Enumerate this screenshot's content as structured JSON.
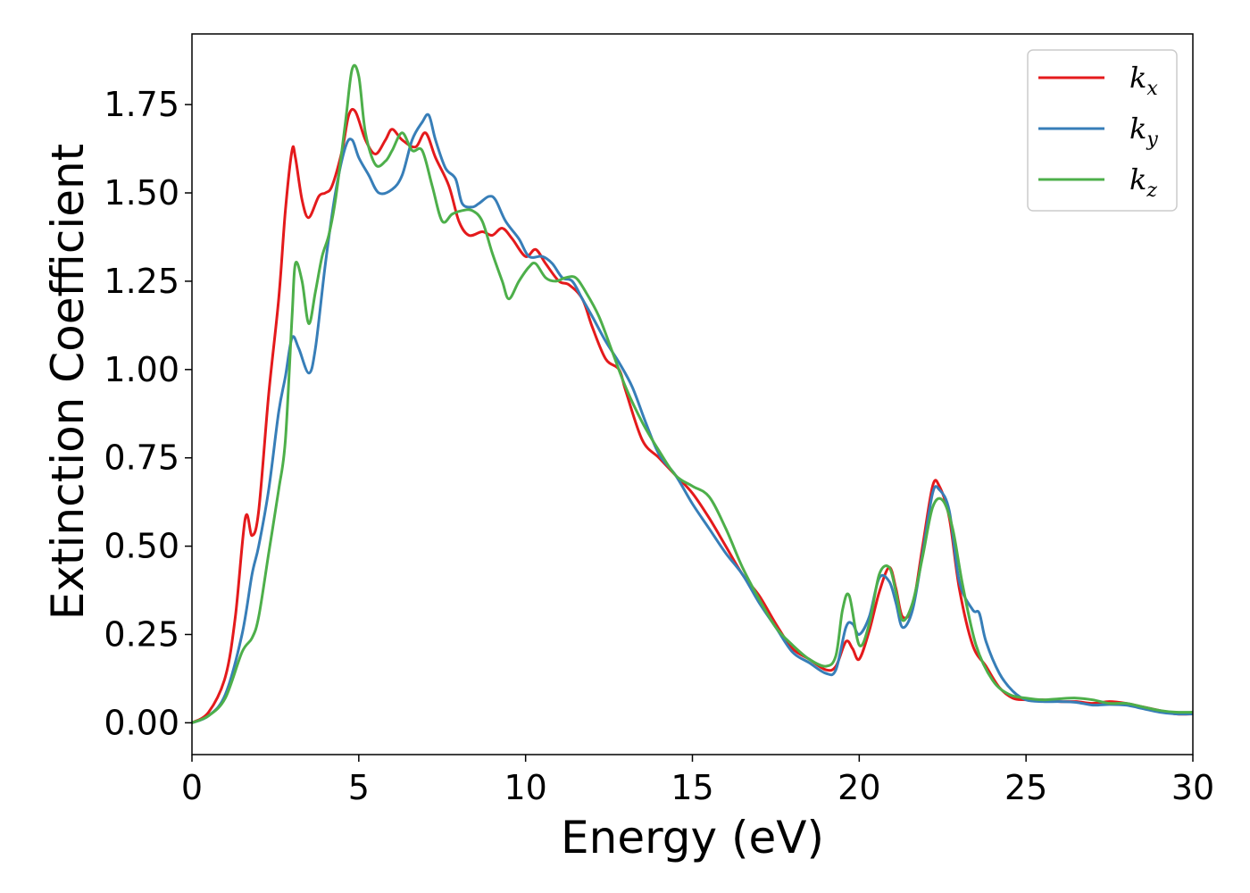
{
  "chart_data": {
    "type": "line",
    "xlabel": "Energy (eV)",
    "ylabel": "Extinction Coefficient",
    "xlim": [
      0,
      30
    ],
    "ylim": [
      -0.09,
      1.95
    ],
    "xticks": [
      0,
      5,
      10,
      15,
      20,
      25,
      30
    ],
    "xtick_labels": [
      "0",
      "5",
      "10",
      "15",
      "20",
      "25",
      "30"
    ],
    "yticks": [
      0,
      0.25,
      0.5,
      0.75,
      1.0,
      1.25,
      1.5,
      1.75
    ],
    "ytick_labels": [
      "0.00",
      "0.25",
      "0.50",
      "0.75",
      "1.00",
      "1.25",
      "1.50",
      "1.75"
    ],
    "grid": false,
    "legend_position": "top-right",
    "series": [
      {
        "name": "k",
        "subscript": "x",
        "color": "#e41a1c",
        "x": [
          0,
          0.5,
          1.0,
          1.3,
          1.6,
          1.8,
          2.0,
          2.3,
          2.6,
          2.8,
          3.0,
          3.1,
          3.3,
          3.5,
          3.8,
          4.0,
          4.2,
          4.5,
          4.7,
          4.9,
          5.2,
          5.5,
          5.8,
          6.0,
          6.3,
          6.7,
          7.0,
          7.3,
          7.7,
          8.0,
          8.3,
          8.7,
          9.0,
          9.3,
          9.6,
          10.0,
          10.3,
          10.6,
          11.0,
          11.3,
          11.7,
          12.0,
          12.4,
          12.8,
          13.0,
          13.5,
          14.0,
          14.5,
          15.0,
          15.5,
          16.0,
          16.5,
          17.0,
          17.5,
          18.0,
          18.5,
          19.0,
          19.3,
          19.6,
          19.8,
          20.0,
          20.3,
          20.6,
          20.9,
          21.1,
          21.3,
          21.6,
          21.9,
          22.2,
          22.4,
          22.7,
          23.0,
          23.4,
          23.8,
          24.2,
          24.6,
          25.0,
          25.5,
          26.0,
          26.5,
          27.0,
          27.5,
          28.0,
          28.5,
          29.0,
          29.5,
          30.0
        ],
        "y": [
          0.0,
          0.03,
          0.13,
          0.3,
          0.58,
          0.53,
          0.6,
          0.93,
          1.2,
          1.45,
          1.62,
          1.6,
          1.48,
          1.43,
          1.49,
          1.5,
          1.52,
          1.62,
          1.72,
          1.73,
          1.65,
          1.61,
          1.65,
          1.68,
          1.65,
          1.63,
          1.67,
          1.6,
          1.52,
          1.42,
          1.38,
          1.39,
          1.38,
          1.4,
          1.37,
          1.32,
          1.34,
          1.3,
          1.25,
          1.24,
          1.2,
          1.12,
          1.03,
          1.0,
          0.94,
          0.8,
          0.75,
          0.7,
          0.65,
          0.58,
          0.5,
          0.42,
          0.36,
          0.28,
          0.21,
          0.18,
          0.15,
          0.16,
          0.23,
          0.21,
          0.18,
          0.26,
          0.37,
          0.44,
          0.38,
          0.3,
          0.33,
          0.5,
          0.67,
          0.67,
          0.58,
          0.38,
          0.22,
          0.16,
          0.1,
          0.07,
          0.065,
          0.065,
          0.06,
          0.06,
          0.055,
          0.06,
          0.055,
          0.045,
          0.035,
          0.025,
          0.025
        ]
      },
      {
        "name": "k",
        "subscript": "y",
        "color": "#377eb8",
        "x": [
          0,
          0.5,
          1.0,
          1.5,
          1.8,
          2.0,
          2.3,
          2.6,
          2.8,
          3.0,
          3.2,
          3.5,
          3.7,
          4.0,
          4.3,
          4.6,
          4.8,
          5.0,
          5.3,
          5.6,
          6.0,
          6.3,
          6.6,
          6.9,
          7.1,
          7.3,
          7.6,
          7.9,
          8.1,
          8.4,
          8.6,
          8.9,
          9.1,
          9.4,
          9.8,
          10.1,
          10.5,
          10.8,
          11.1,
          11.4,
          11.7,
          12.0,
          12.4,
          12.8,
          13.2,
          13.6,
          14.0,
          14.5,
          15.0,
          15.5,
          16.0,
          16.5,
          17.0,
          17.5,
          18.0,
          18.5,
          19.0,
          19.3,
          19.6,
          19.8,
          20.0,
          20.3,
          20.6,
          20.9,
          21.1,
          21.3,
          21.6,
          21.9,
          22.2,
          22.4,
          22.7,
          23.0,
          23.4,
          23.6,
          23.8,
          24.2,
          24.6,
          25.0,
          25.5,
          26.0,
          26.5,
          27.0,
          27.5,
          28.0,
          28.5,
          29.0,
          29.5,
          30.0
        ],
        "y": [
          0.0,
          0.02,
          0.08,
          0.25,
          0.42,
          0.5,
          0.66,
          0.88,
          0.98,
          1.09,
          1.06,
          0.99,
          1.06,
          1.3,
          1.5,
          1.63,
          1.65,
          1.6,
          1.55,
          1.5,
          1.51,
          1.55,
          1.65,
          1.7,
          1.72,
          1.65,
          1.57,
          1.54,
          1.47,
          1.46,
          1.47,
          1.49,
          1.48,
          1.42,
          1.37,
          1.32,
          1.32,
          1.3,
          1.26,
          1.25,
          1.2,
          1.15,
          1.08,
          1.02,
          0.95,
          0.85,
          0.76,
          0.7,
          0.62,
          0.55,
          0.48,
          0.42,
          0.34,
          0.27,
          0.2,
          0.17,
          0.14,
          0.15,
          0.27,
          0.28,
          0.25,
          0.3,
          0.41,
          0.4,
          0.34,
          0.27,
          0.32,
          0.48,
          0.65,
          0.66,
          0.6,
          0.4,
          0.32,
          0.31,
          0.23,
          0.14,
          0.09,
          0.065,
          0.06,
          0.06,
          0.058,
          0.05,
          0.052,
          0.05,
          0.04,
          0.03,
          0.025,
          0.025
        ]
      },
      {
        "name": "k",
        "subscript": "z",
        "color": "#4daf4a",
        "x": [
          0,
          0.5,
          1.0,
          1.5,
          1.8,
          2.0,
          2.3,
          2.6,
          2.8,
          3.0,
          3.1,
          3.3,
          3.5,
          3.7,
          3.9,
          4.1,
          4.3,
          4.6,
          4.8,
          5.0,
          5.2,
          5.5,
          5.8,
          6.0,
          6.3,
          6.6,
          6.9,
          7.2,
          7.5,
          7.8,
          8.1,
          8.4,
          8.7,
          9.0,
          9.3,
          9.5,
          9.8,
          10.1,
          10.3,
          10.6,
          10.9,
          11.2,
          11.5,
          11.8,
          12.2,
          12.6,
          13.0,
          13.5,
          14.0,
          14.5,
          15.0,
          15.5,
          16.0,
          16.5,
          17.0,
          17.5,
          18.0,
          18.5,
          19.0,
          19.3,
          19.5,
          19.7,
          20.0,
          20.3,
          20.6,
          20.9,
          21.1,
          21.3,
          21.6,
          21.9,
          22.2,
          22.5,
          22.8,
          23.1,
          23.5,
          24.0,
          24.5,
          25.0,
          25.5,
          26.0,
          26.5,
          27.0,
          27.5,
          28.0,
          28.5,
          29.0,
          29.5,
          30.0
        ],
        "y": [
          0.0,
          0.02,
          0.07,
          0.2,
          0.24,
          0.3,
          0.48,
          0.66,
          0.8,
          1.15,
          1.3,
          1.25,
          1.13,
          1.22,
          1.32,
          1.38,
          1.48,
          1.7,
          1.85,
          1.83,
          1.67,
          1.58,
          1.59,
          1.62,
          1.67,
          1.62,
          1.62,
          1.52,
          1.42,
          1.44,
          1.45,
          1.45,
          1.42,
          1.33,
          1.25,
          1.2,
          1.25,
          1.29,
          1.3,
          1.26,
          1.25,
          1.26,
          1.26,
          1.22,
          1.15,
          1.05,
          0.95,
          0.85,
          0.77,
          0.7,
          0.67,
          0.64,
          0.55,
          0.44,
          0.35,
          0.27,
          0.22,
          0.18,
          0.16,
          0.19,
          0.32,
          0.36,
          0.22,
          0.28,
          0.42,
          0.44,
          0.37,
          0.29,
          0.34,
          0.47,
          0.61,
          0.63,
          0.55,
          0.39,
          0.22,
          0.12,
          0.08,
          0.07,
          0.065,
          0.068,
          0.07,
          0.065,
          0.055,
          0.055,
          0.045,
          0.035,
          0.03,
          0.03
        ]
      }
    ]
  }
}
